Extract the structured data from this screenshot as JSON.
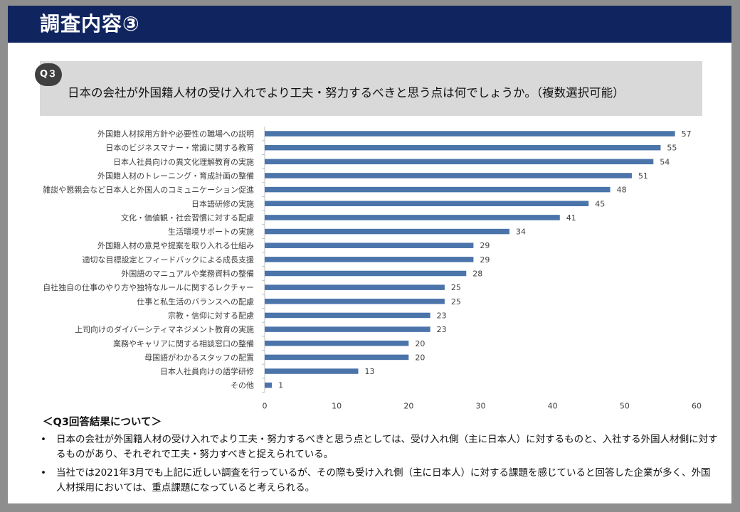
{
  "header": {
    "title": "調査内容③"
  },
  "question": {
    "badge": "Q３",
    "text": "日本の会社が外国籍人材の受け入れでより工夫・努力するべきと思う点は何でしょうか。（複数選択可能）"
  },
  "chart_data": {
    "type": "bar",
    "orientation": "horizontal",
    "categories": [
      "外国籍人材採用方針や必要性の職場への説明",
      "日本のビジネスマナー・常識に関する教育",
      "日本人社員向けの異文化理解教育の実施",
      "外国籍人材のトレーニング・育成計画の整備",
      "雑談や懇親会など日本人と外国人のコミュニケーション促進",
      "日本語研修の実施",
      "文化・価値観・社会習慣に対する配慮",
      "生活環境サポートの実施",
      "外国籍人材の意見や提案を取り入れる仕組み",
      "適切な目標設定とフィードバックによる成長支援",
      "外国語のマニュアルや業務資料の整備",
      "自社独自の仕事のやり方や独特なルールに関するレクチャー",
      "仕事と私生活のバランスへの配慮",
      "宗教・信仰に対する配慮",
      "上司向けのダイバーシティマネジメント教育の実施",
      "業務やキャリアに関する相談窓口の整備",
      "母国語がわかるスタッフの配置",
      "日本人社員向けの語学研修",
      "その他"
    ],
    "values": [
      57,
      55,
      54,
      51,
      48,
      45,
      41,
      34,
      29,
      29,
      28,
      25,
      25,
      23,
      23,
      20,
      20,
      13,
      1
    ],
    "xlim": [
      0,
      60
    ],
    "xticks": [
      0,
      10,
      20,
      30,
      40,
      50,
      60
    ],
    "bar_color": "#4a74aa",
    "grid": false,
    "data_labels": true
  },
  "summary": {
    "title": "＜Q3回答結果について＞",
    "bullet_symbol": "•",
    "items": [
      "日本の会社が外国籍人材の受け入れでより工夫・努力するべきと思う点としては、受け入れ側（主に日本人）に対するものと、入社する外国人材側に対するものがあり、それぞれで工夫・努力すべきと捉えられている。",
      "当社では2021年3月でも上記に近しい調査を行っているが、その際も受け入れ側（主に日本人）に対する課題を感じていると回答した企業が多く、外国人材採用においては、重点課題になっていると考えられる。"
    ]
  }
}
